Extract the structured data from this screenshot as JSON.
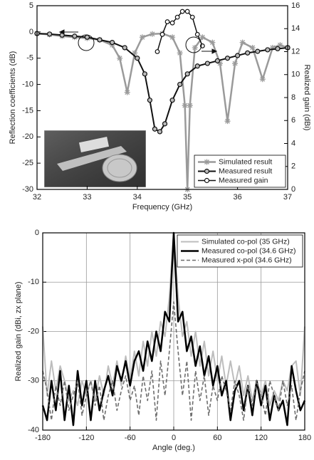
{
  "chart_data": [
    {
      "type": "line",
      "xlabel": "Frequency (GHz)",
      "ylabel": "Reflection coefficients (dB)",
      "y2label": "Realized gain (dBi)",
      "xlim": [
        32,
        37
      ],
      "xticks": [
        32,
        33,
        34,
        35,
        36,
        37
      ],
      "ylim": [
        -30,
        5
      ],
      "yticks": [
        -30,
        -25,
        -20,
        -15,
        -10,
        -5,
        0,
        5
      ],
      "y2lim": [
        0,
        16
      ],
      "y2ticks": [
        0,
        2,
        4,
        6,
        8,
        10,
        12,
        14,
        16
      ],
      "grid": false,
      "legend": "lower right",
      "series": [
        {
          "name": "Simulated result",
          "color": "#9a9a9a",
          "marker": "star",
          "linewidth": 2.5,
          "x": [
            32,
            32.25,
            32.5,
            32.75,
            33,
            33.25,
            33.5,
            33.65,
            33.8,
            33.95,
            34.1,
            34.3,
            34.5,
            34.7,
            34.85,
            34.95,
            35,
            35.05,
            35.15,
            35.3,
            35.5,
            35.65,
            35.8,
            35.95,
            36.1,
            36.3,
            36.5,
            36.7,
            36.85,
            37
          ],
          "values": [
            -0.3,
            -0.5,
            -0.8,
            -1,
            -1.2,
            -1.5,
            -2.5,
            -5,
            -11.5,
            -4,
            -1,
            -0.4,
            -0.3,
            -1,
            -4,
            -14,
            -30,
            -14,
            -3,
            -1,
            -2,
            -6,
            -17,
            -6,
            -2,
            -3,
            -9,
            -3,
            -2.5,
            -3
          ]
        },
        {
          "name": "Measured result",
          "color": "#111111",
          "marker": "filled-circle",
          "linewidth": 2,
          "x": [
            32,
            32.25,
            32.5,
            32.75,
            33,
            33.25,
            33.5,
            33.75,
            34,
            34.15,
            34.25,
            34.35,
            34.45,
            34.55,
            34.7,
            34.85,
            35,
            35.2,
            35.4,
            35.6,
            35.8,
            36,
            36.2,
            36.4,
            36.6,
            36.8,
            37
          ],
          "values": [
            -0.3,
            -0.4,
            -0.6,
            -0.8,
            -1,
            -1.5,
            -2,
            -3,
            -5,
            -8,
            -13,
            -18.5,
            -19,
            -17.5,
            -13,
            -10,
            -8,
            -6.5,
            -6,
            -5.5,
            -5,
            -4.5,
            -4,
            -3.7,
            -3.4,
            -3.2,
            -3
          ]
        },
        {
          "name": "Measured gain",
          "color": "#111111",
          "marker": "open-circle",
          "linewidth": 1.5,
          "axis": "y2",
          "x": [
            34.4,
            34.5,
            34.6,
            34.7,
            34.8,
            34.9,
            35,
            35.1,
            35.2,
            35.3
          ],
          "values": [
            12,
            13.5,
            14.6,
            14.5,
            15,
            15.5,
            15.5,
            15,
            13.5,
            12.5
          ]
        }
      ]
    },
    {
      "type": "line",
      "xlabel": "Angle (deg.)",
      "ylabel": "Realized gain (dBi, zx plane)",
      "xlim": [
        -180,
        180
      ],
      "xticks": [
        -180,
        -120,
        -60,
        0,
        60,
        120,
        180
      ],
      "ylim": [
        -40,
        0
      ],
      "yticks": [
        -40,
        -30,
        -20,
        -10,
        0
      ],
      "grid": true,
      "legend": "upper right",
      "x": [
        -180,
        -174,
        -168,
        -162,
        -156,
        -150,
        -144,
        -138,
        -132,
        -126,
        -120,
        -114,
        -108,
        -102,
        -96,
        -90,
        -84,
        -78,
        -72,
        -66,
        -60,
        -54,
        -48,
        -42,
        -36,
        -30,
        -24,
        -18,
        -12,
        -6,
        0,
        6,
        12,
        18,
        24,
        30,
        36,
        42,
        48,
        54,
        60,
        66,
        72,
        78,
        84,
        90,
        96,
        102,
        108,
        114,
        120,
        126,
        132,
        138,
        144,
        150,
        156,
        162,
        168,
        174,
        180
      ],
      "series": [
        {
          "name": "Simulated co-pol (35 GHz)",
          "color": "#bdbdbd",
          "linewidth": 2,
          "values": [
            -19,
            -33,
            -26,
            -32,
            -27,
            -30,
            -34,
            -32,
            -35,
            -30,
            -33,
            -30,
            -34,
            -29,
            -33,
            -27,
            -31,
            -26,
            -31,
            -25,
            -30,
            -24,
            -29,
            -22,
            -27,
            -20,
            -25,
            -18,
            -21,
            -13,
            0,
            -13,
            -21,
            -18,
            -25,
            -20,
            -27,
            -22,
            -29,
            -24,
            -30,
            -25,
            -31,
            -26,
            -31,
            -27,
            -33,
            -29,
            -34,
            -30,
            -33,
            -30,
            -35,
            -32,
            -34,
            -30,
            -32,
            -27,
            -26,
            -33,
            -19
          ]
        },
        {
          "name": "Measured co-pol (34.6 GHz)",
          "color": "#000000",
          "linewidth": 2.5,
          "values": [
            -35,
            -38,
            -30,
            -36,
            -28,
            -38,
            -31,
            -39,
            -28,
            -35,
            -30,
            -38,
            -30,
            -36,
            -32,
            -29,
            -33,
            -27,
            -30,
            -26,
            -31,
            -26,
            -24,
            -28,
            -22,
            -26,
            -20,
            -24,
            -16,
            -18,
            0,
            -18,
            -16,
            -24,
            -21,
            -27,
            -23,
            -29,
            -25,
            -31,
            -27,
            -33,
            -30,
            -38,
            -32,
            -30,
            -36,
            -31,
            -37,
            -30,
            -35,
            -31,
            -38,
            -33,
            -36,
            -34,
            -39,
            -27,
            -32,
            -36,
            -34
          ]
        },
        {
          "name": "Measured x-pol (34.6 GHz)",
          "color": "#6e6e6e",
          "linewidth": 1.6,
          "line_style": "dashed",
          "values": [
            -28,
            -32,
            -38,
            -31,
            -35,
            -30,
            -36,
            -33,
            -30,
            -37,
            -33,
            -30,
            -35,
            -31,
            -38,
            -33,
            -30,
            -36,
            -32,
            -29,
            -34,
            -31,
            -37,
            -29,
            -34,
            -28,
            -38,
            -26,
            -33,
            -24,
            -14,
            -24,
            -33,
            -26,
            -38,
            -28,
            -34,
            -29,
            -37,
            -31,
            -34,
            -29,
            -32,
            -36,
            -30,
            -33,
            -38,
            -31,
            -35,
            -30,
            -33,
            -37,
            -30,
            -33,
            -36,
            -30,
            -35,
            -31,
            -38,
            -32,
            -28
          ]
        }
      ]
    }
  ]
}
